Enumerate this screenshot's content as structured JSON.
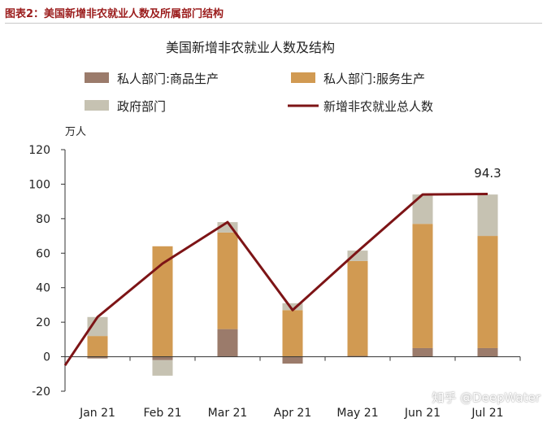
{
  "figure_caption": "图表2：美国新增非农就业人数及所属部门结构",
  "watermark": "知乎 @DeepWater",
  "chart_data": {
    "type": "bar",
    "title": "美国新增非农就业人数及结构",
    "y_unit": "万人",
    "ylim": [
      -20,
      120
    ],
    "yticks": [
      -20,
      0,
      20,
      40,
      60,
      80,
      100,
      120
    ],
    "categories": [
      "Jan 21",
      "Feb 21",
      "Mar 21",
      "Apr 21",
      "May 21",
      "Jun 21",
      "Jul 21"
    ],
    "grid": false,
    "legend_position": "top",
    "series": [
      {
        "name": "私人部门:商品生产",
        "kind": "stacked-bar",
        "color": "#9b7b6b",
        "values": [
          -1,
          -2,
          16,
          -4,
          0.5,
          5,
          5
        ]
      },
      {
        "name": "私人部门:服务生产",
        "kind": "stacked-bar",
        "color": "#d19a52",
        "values": [
          12,
          64,
          56,
          27,
          55,
          72,
          65
        ]
      },
      {
        "name": "政府部门",
        "kind": "stacked-bar",
        "color": "#c6c2b2",
        "values": [
          11,
          -9,
          6,
          4,
          6,
          17,
          24
        ]
      },
      {
        "name": "新增非农就业总人数",
        "kind": "line",
        "color": "#7d1416",
        "values": [
          23,
          54,
          78,
          27,
          61,
          94,
          94.3
        ]
      }
    ],
    "annotations": [
      {
        "category": "Jul 21",
        "text": "94.3"
      }
    ]
  }
}
